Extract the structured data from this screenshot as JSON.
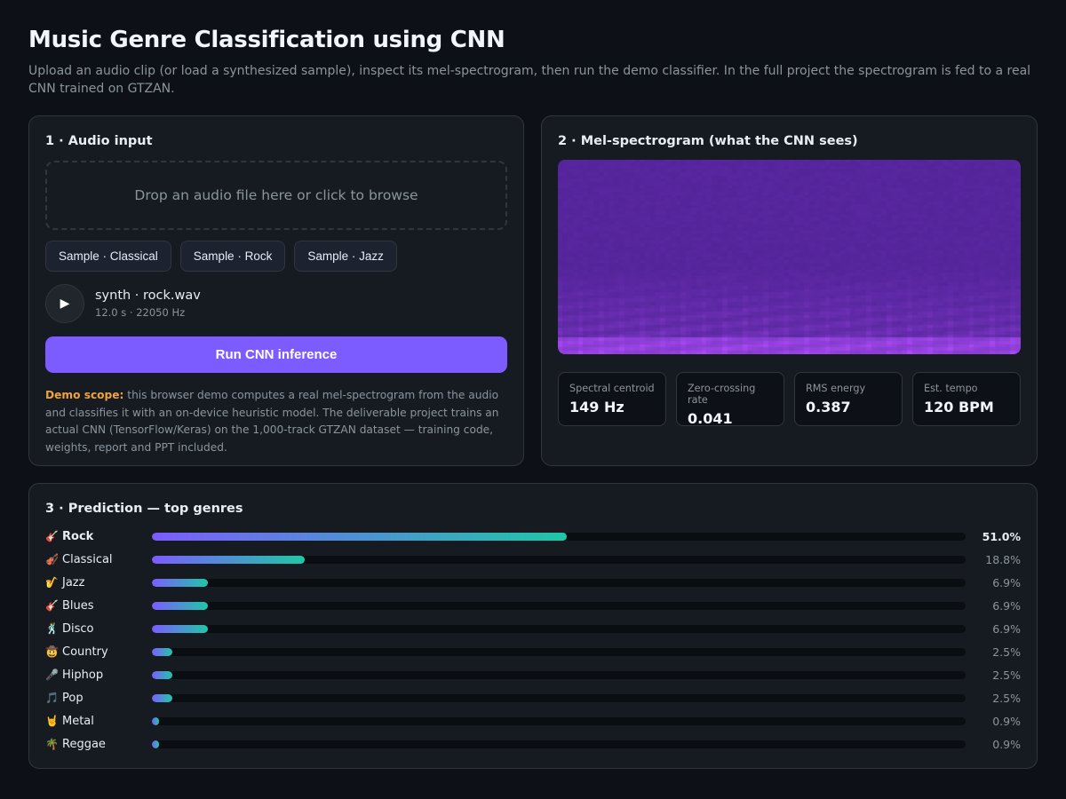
{
  "header": {
    "title": "Music Genre Classification using CNN",
    "subtitle": "Upload an audio clip (or load a synthesized sample), inspect its mel-spectrogram, then run the demo classifier. In the full project the spectrogram is fed to a real CNN trained on GTZAN."
  },
  "audio_panel": {
    "title": "1 · Audio input",
    "dropzone_text": "Drop an audio file here or click to browse",
    "samples": [
      {
        "label": "Sample · Classical"
      },
      {
        "label": "Sample · Rock"
      },
      {
        "label": "Sample · Jazz"
      }
    ],
    "play_icon": "▶",
    "file_name": "synth · rock.wav",
    "file_info": "12.0 s · 22050 Hz",
    "run_label": "Run CNN inference",
    "note_strong": "Demo scope:",
    "note_text": " this browser demo computes a real mel-spectrogram from the audio and classifies it with an on-device heuristic model. The deliverable project trains an actual CNN (TensorFlow/Keras) on the 1,000-track GTZAN dataset — training code, weights, report and PPT included."
  },
  "spec_panel": {
    "title": "2 · Mel-spectrogram (what the CNN sees)",
    "metrics": [
      {
        "label": "Spectral centroid",
        "value": "149 Hz"
      },
      {
        "label": "Zero-crossing rate",
        "value": "0.041"
      },
      {
        "label": "RMS energy",
        "value": "0.387"
      },
      {
        "label": "Est. tempo",
        "value": "120 BPM"
      }
    ]
  },
  "prediction_panel": {
    "title": "3 · Prediction — top genres",
    "items": [
      {
        "emoji": "🎸",
        "label": "Rock",
        "percent": 51.0,
        "pct_text": "51.0%"
      },
      {
        "emoji": "🎻",
        "label": "Classical",
        "percent": 18.8,
        "pct_text": "18.8%"
      },
      {
        "emoji": "🎷",
        "label": "Jazz",
        "percent": 6.9,
        "pct_text": "6.9%"
      },
      {
        "emoji": "🎸",
        "label": "Blues",
        "percent": 6.9,
        "pct_text": "6.9%"
      },
      {
        "emoji": "🕺",
        "label": "Disco",
        "percent": 6.9,
        "pct_text": "6.9%"
      },
      {
        "emoji": "🤠",
        "label": "Country",
        "percent": 2.5,
        "pct_text": "2.5%"
      },
      {
        "emoji": "🎤",
        "label": "Hiphop",
        "percent": 2.5,
        "pct_text": "2.5%"
      },
      {
        "emoji": "🎵",
        "label": "Pop",
        "percent": 2.5,
        "pct_text": "2.5%"
      },
      {
        "emoji": "🤘",
        "label": "Metal",
        "percent": 0.9,
        "pct_text": "0.9%"
      },
      {
        "emoji": "🌴",
        "label": "Reggae",
        "percent": 0.9,
        "pct_text": "0.9%"
      }
    ]
  },
  "colors": {
    "accent": "#7c5cff",
    "accent_end": "#1fc7a6",
    "warning": "#f0a23b",
    "background": "#0d1117",
    "panel": "#161b22"
  }
}
